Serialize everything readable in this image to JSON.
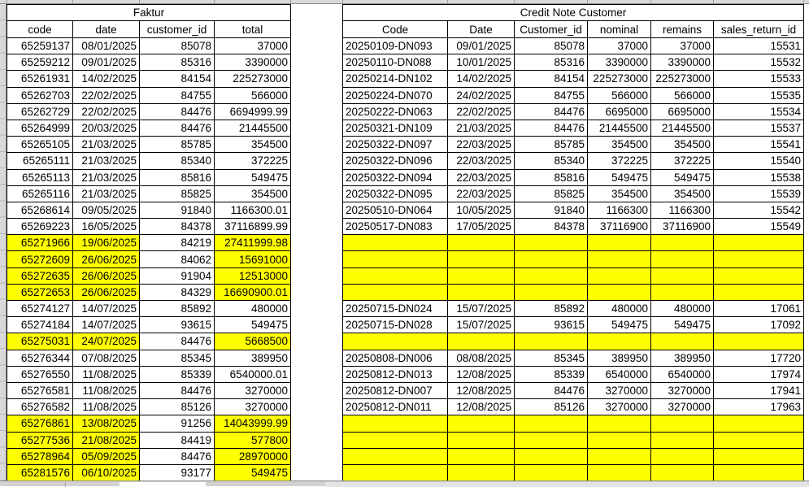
{
  "colors": {
    "highlight": "#ffff00",
    "cell_border": "#000000",
    "chrome_gray": "#d9d9d9"
  },
  "faktur_table": {
    "title": "Faktur",
    "columns": [
      {
        "label": "code",
        "align": "right"
      },
      {
        "label": "date",
        "align": "right"
      },
      {
        "label": "customer_id",
        "align": "right"
      },
      {
        "label": "total",
        "align": "right"
      }
    ],
    "highlight_columns": [
      0,
      1,
      3
    ],
    "rows": [
      {
        "cells": [
          "65259137",
          "08/01/2025",
          "85078",
          "37000"
        ],
        "highlight": false
      },
      {
        "cells": [
          "65259212",
          "09/01/2025",
          "85316",
          "3390000"
        ],
        "highlight": false
      },
      {
        "cells": [
          "65261931",
          "14/02/2025",
          "84154",
          "225273000"
        ],
        "highlight": false
      },
      {
        "cells": [
          "65262703",
          "22/02/2025",
          "84755",
          "566000"
        ],
        "highlight": false
      },
      {
        "cells": [
          "65262729",
          "22/02/2025",
          "84476",
          "6694999.99"
        ],
        "highlight": false
      },
      {
        "cells": [
          "65264999",
          "20/03/2025",
          "84476",
          "21445500"
        ],
        "highlight": false
      },
      {
        "cells": [
          "65265105",
          "21/03/2025",
          "85785",
          "354500"
        ],
        "highlight": false
      },
      {
        "cells": [
          "65265111",
          "21/03/2025",
          "85340",
          "372225"
        ],
        "highlight": false
      },
      {
        "cells": [
          "65265113",
          "21/03/2025",
          "85816",
          "549475"
        ],
        "highlight": false
      },
      {
        "cells": [
          "65265116",
          "21/03/2025",
          "85825",
          "354500"
        ],
        "highlight": false
      },
      {
        "cells": [
          "65268614",
          "09/05/2025",
          "91840",
          "1166300.01"
        ],
        "highlight": false
      },
      {
        "cells": [
          "65269223",
          "16/05/2025",
          "84378",
          "37116899.99"
        ],
        "highlight": false
      },
      {
        "cells": [
          "65271966",
          "19/06/2025",
          "84219",
          "27411999.98"
        ],
        "highlight": true
      },
      {
        "cells": [
          "65272609",
          "26/06/2025",
          "84062",
          "15691000"
        ],
        "highlight": true
      },
      {
        "cells": [
          "65272635",
          "26/06/2025",
          "91904",
          "12513000"
        ],
        "highlight": true
      },
      {
        "cells": [
          "65272653",
          "26/06/2025",
          "84329",
          "16690900.01"
        ],
        "highlight": true
      },
      {
        "cells": [
          "65274127",
          "14/07/2025",
          "85892",
          "480000"
        ],
        "highlight": false
      },
      {
        "cells": [
          "65274184",
          "14/07/2025",
          "93615",
          "549475"
        ],
        "highlight": false
      },
      {
        "cells": [
          "65275031",
          "24/07/2025",
          "84476",
          "5668500"
        ],
        "highlight": true
      },
      {
        "cells": [
          "65276344",
          "07/08/2025",
          "85345",
          "389950"
        ],
        "highlight": false
      },
      {
        "cells": [
          "65276550",
          "11/08/2025",
          "85339",
          "6540000.01"
        ],
        "highlight": false
      },
      {
        "cells": [
          "65276581",
          "11/08/2025",
          "84476",
          "3270000"
        ],
        "highlight": false
      },
      {
        "cells": [
          "65276582",
          "11/08/2025",
          "85126",
          "3270000"
        ],
        "highlight": false
      },
      {
        "cells": [
          "65276861",
          "13/08/2025",
          "91256",
          "14043999.99"
        ],
        "highlight": true
      },
      {
        "cells": [
          "65277536",
          "21/08/2025",
          "84419",
          "577800"
        ],
        "highlight": true
      },
      {
        "cells": [
          "65278964",
          "05/09/2025",
          "84476",
          "28970000"
        ],
        "highlight": true
      },
      {
        "cells": [
          "65281576",
          "06/10/2025",
          "93177",
          "549475"
        ],
        "highlight": true
      }
    ]
  },
  "credit_note_table": {
    "title": "Credit Note Customer",
    "columns": [
      {
        "label": "Code",
        "align": "left"
      },
      {
        "label": "Date",
        "align": "right"
      },
      {
        "label": "Customer_id",
        "align": "right"
      },
      {
        "label": "nominal",
        "align": "right"
      },
      {
        "label": "remains",
        "align": "right"
      },
      {
        "label": "sales_return_id",
        "align": "right"
      }
    ],
    "highlight_columns": [
      0,
      1,
      2,
      3,
      4,
      5
    ],
    "rows": [
      {
        "cells": [
          "20250109-DN093",
          "09/01/2025",
          "85078",
          "37000",
          "37000",
          "15531"
        ],
        "highlight": false
      },
      {
        "cells": [
          "20250110-DN088",
          "10/01/2025",
          "85316",
          "3390000",
          "3390000",
          "15532"
        ],
        "highlight": false
      },
      {
        "cells": [
          "20250214-DN102",
          "14/02/2025",
          "84154",
          "225273000",
          "225273000",
          "15533"
        ],
        "highlight": false
      },
      {
        "cells": [
          "20250224-DN070",
          "24/02/2025",
          "84755",
          "566000",
          "566000",
          "15535"
        ],
        "highlight": false
      },
      {
        "cells": [
          "20250222-DN063",
          "22/02/2025",
          "84476",
          "6695000",
          "6695000",
          "15534"
        ],
        "highlight": false
      },
      {
        "cells": [
          "20250321-DN109",
          "21/03/2025",
          "84476",
          "21445500",
          "21445500",
          "15537"
        ],
        "highlight": false
      },
      {
        "cells": [
          "20250322-DN097",
          "22/03/2025",
          "85785",
          "354500",
          "354500",
          "15541"
        ],
        "highlight": false
      },
      {
        "cells": [
          "20250322-DN096",
          "22/03/2025",
          "85340",
          "372225",
          "372225",
          "15540"
        ],
        "highlight": false
      },
      {
        "cells": [
          "20250322-DN094",
          "22/03/2025",
          "85816",
          "549475",
          "549475",
          "15538"
        ],
        "highlight": false
      },
      {
        "cells": [
          "20250322-DN095",
          "22/03/2025",
          "85825",
          "354500",
          "354500",
          "15539"
        ],
        "highlight": false
      },
      {
        "cells": [
          "20250510-DN064",
          "10/05/2025",
          "91840",
          "1166300",
          "1166300",
          "15542"
        ],
        "highlight": false
      },
      {
        "cells": [
          "20250517-DN083",
          "17/05/2025",
          "84378",
          "37116900",
          "37116900",
          "15549"
        ],
        "highlight": false
      },
      {
        "cells": [
          "",
          "",
          "",
          "",
          "",
          ""
        ],
        "highlight": true
      },
      {
        "cells": [
          "",
          "",
          "",
          "",
          "",
          ""
        ],
        "highlight": true
      },
      {
        "cells": [
          "",
          "",
          "",
          "",
          "",
          ""
        ],
        "highlight": true
      },
      {
        "cells": [
          "",
          "",
          "",
          "",
          "",
          ""
        ],
        "highlight": true
      },
      {
        "cells": [
          "20250715-DN024",
          "15/07/2025",
          "85892",
          "480000",
          "480000",
          "17061"
        ],
        "highlight": false
      },
      {
        "cells": [
          "20250715-DN028",
          "15/07/2025",
          "93615",
          "549475",
          "549475",
          "17092"
        ],
        "highlight": false
      },
      {
        "cells": [
          "",
          "",
          "",
          "",
          "",
          ""
        ],
        "highlight": true
      },
      {
        "cells": [
          "20250808-DN006",
          "08/08/2025",
          "85345",
          "389950",
          "389950",
          "17720"
        ],
        "highlight": false
      },
      {
        "cells": [
          "20250812-DN013",
          "12/08/2025",
          "85339",
          "6540000",
          "6540000",
          "17974"
        ],
        "highlight": false
      },
      {
        "cells": [
          "20250812-DN007",
          "12/08/2025",
          "84476",
          "3270000",
          "3270000",
          "17941"
        ],
        "highlight": false
      },
      {
        "cells": [
          "20250812-DN011",
          "12/08/2025",
          "85126",
          "3270000",
          "3270000",
          "17963"
        ],
        "highlight": false
      },
      {
        "cells": [
          "",
          "",
          "",
          "",
          "",
          ""
        ],
        "highlight": true
      },
      {
        "cells": [
          "",
          "",
          "",
          "",
          "",
          ""
        ],
        "highlight": true
      },
      {
        "cells": [
          "",
          "",
          "",
          "",
          "",
          ""
        ],
        "highlight": true
      },
      {
        "cells": [
          "",
          "",
          "",
          "",
          "",
          ""
        ],
        "highlight": true
      }
    ]
  }
}
